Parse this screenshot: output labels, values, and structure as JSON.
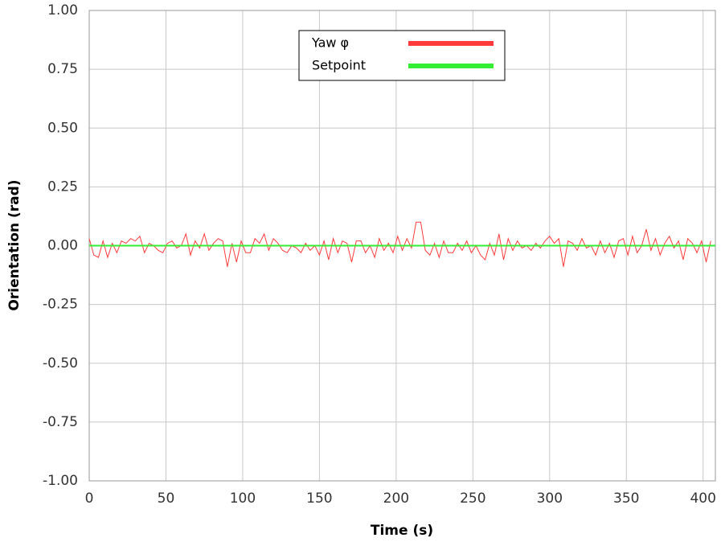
{
  "chart_data": {
    "type": "line",
    "xlabel": "Time (s)",
    "ylabel": "Orientation (rad)",
    "xlim": [
      0,
      408
    ],
    "ylim": [
      -1,
      1
    ],
    "xticks": [
      0,
      50,
      100,
      150,
      200,
      250,
      300,
      350,
      400
    ],
    "yticks": [
      {
        "value": 1,
        "label": "1.00"
      },
      {
        "value": 0.75,
        "label": "0.75"
      },
      {
        "value": 0.5,
        "label": "0.50"
      },
      {
        "value": 0.25,
        "label": "0.25"
      },
      {
        "value": 0,
        "label": "0.00"
      },
      {
        "value": -0.25,
        "label": "-0.25"
      },
      {
        "value": -0.5,
        "label": "-0.50"
      },
      {
        "value": -0.75,
        "label": "-0.75"
      },
      {
        "value": -1,
        "label": "-1.00"
      }
    ],
    "grid": true,
    "legend": "top",
    "series": [
      {
        "name": "Yaw φ",
        "color": "#ff3b3b",
        "x": [
          0,
          3,
          6,
          9,
          12,
          15,
          18,
          21,
          24,
          27,
          30,
          33,
          36,
          39,
          42,
          45,
          48,
          51,
          54,
          57,
          60,
          63,
          66,
          69,
          72,
          75,
          78,
          81,
          84,
          87,
          90,
          93,
          96,
          99,
          102,
          105,
          108,
          111,
          114,
          117,
          120,
          123,
          126,
          129,
          132,
          135,
          138,
          141,
          144,
          147,
          150,
          153,
          156,
          159,
          162,
          165,
          168,
          171,
          174,
          177,
          180,
          183,
          186,
          189,
          192,
          195,
          198,
          201,
          204,
          207,
          210,
          213,
          216,
          219,
          222,
          225,
          228,
          231,
          234,
          237,
          240,
          243,
          246,
          249,
          252,
          255,
          258,
          261,
          264,
          267,
          270,
          273,
          276,
          279,
          282,
          285,
          288,
          291,
          294,
          297,
          300,
          303,
          306,
          309,
          312,
          315,
          318,
          321,
          324,
          327,
          330,
          333,
          336,
          339,
          342,
          345,
          348,
          351,
          354,
          357,
          360,
          363,
          366,
          369,
          372,
          375,
          378,
          381,
          384,
          387,
          390,
          393,
          396,
          399,
          402,
          405
        ],
        "values": [
          0.03,
          -0.04,
          -0.05,
          0.02,
          -0.05,
          0.01,
          -0.03,
          0.02,
          0.01,
          0.03,
          0.02,
          0.04,
          -0.03,
          0.01,
          0.0,
          -0.02,
          -0.03,
          0.01,
          0.02,
          -0.01,
          0.0,
          0.05,
          -0.04,
          0.02,
          -0.01,
          0.05,
          -0.02,
          0.01,
          0.03,
          0.02,
          -0.09,
          0.01,
          -0.07,
          0.02,
          -0.03,
          -0.03,
          0.03,
          0.01,
          0.05,
          -0.02,
          0.03,
          0.01,
          -0.02,
          -0.03,
          0.0,
          -0.01,
          -0.03,
          0.01,
          -0.02,
          0.0,
          -0.04,
          0.02,
          -0.06,
          0.03,
          -0.03,
          0.02,
          0.01,
          -0.07,
          0.02,
          0.02,
          -0.03,
          0.0,
          -0.05,
          0.03,
          -0.02,
          0.01,
          -0.03,
          0.04,
          -0.02,
          0.03,
          -0.01,
          0.1,
          0.1,
          -0.02,
          -0.04,
          0.01,
          -0.05,
          0.02,
          -0.03,
          -0.03,
          0.01,
          -0.02,
          0.02,
          -0.03,
          0.0,
          -0.04,
          -0.06,
          0.01,
          -0.04,
          0.05,
          -0.06,
          0.03,
          -0.02,
          0.02,
          -0.01,
          0.0,
          -0.02,
          0.01,
          -0.01,
          0.02,
          0.04,
          0.01,
          0.03,
          -0.09,
          0.02,
          0.01,
          -0.02,
          0.03,
          -0.01,
          0.0,
          -0.04,
          0.02,
          -0.03,
          0.01,
          -0.05,
          0.02,
          0.03,
          -0.04,
          0.04,
          -0.03,
          0.0,
          0.07,
          -0.02,
          0.03,
          -0.04,
          0.01,
          0.04,
          -0.01,
          0.02,
          -0.06,
          0.03,
          0.01,
          -0.03,
          0.02,
          -0.07,
          0.02
        ]
      },
      {
        "name": "Setpoint",
        "color": "#33ee33",
        "x": [
          0,
          408
        ],
        "values": [
          0,
          0
        ]
      }
    ]
  }
}
